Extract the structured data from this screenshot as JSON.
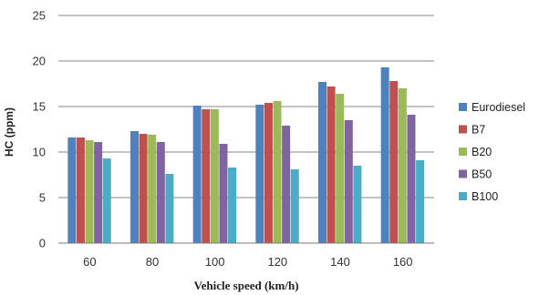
{
  "chart_data": {
    "type": "bar",
    "xlabel": "Vehicle speed (km/h)",
    "ylabel": "HC (ppm)",
    "ylim": [
      0,
      25
    ],
    "yticks": [
      0,
      5,
      10,
      15,
      20,
      25
    ],
    "grid": true,
    "legend_position": "right",
    "categories": [
      "60",
      "80",
      "100",
      "120",
      "140",
      "160"
    ],
    "series": [
      {
        "name": "Eurodiesel",
        "color": "#4F81BD",
        "values": [
          11.6,
          12.3,
          15.1,
          15.2,
          17.7,
          19.3
        ]
      },
      {
        "name": "B7",
        "color": "#C0504D",
        "values": [
          11.6,
          12.0,
          14.7,
          15.4,
          17.2,
          17.8
        ]
      },
      {
        "name": "B20",
        "color": "#9BBB59",
        "values": [
          11.3,
          11.9,
          14.7,
          15.6,
          16.4,
          17.0
        ]
      },
      {
        "name": "B50",
        "color": "#8064A2",
        "values": [
          11.1,
          11.1,
          10.9,
          12.9,
          13.5,
          14.1
        ]
      },
      {
        "name": "B100",
        "color": "#4BACC6",
        "values": [
          9.3,
          7.6,
          8.3,
          8.1,
          8.5,
          9.1
        ]
      }
    ]
  }
}
